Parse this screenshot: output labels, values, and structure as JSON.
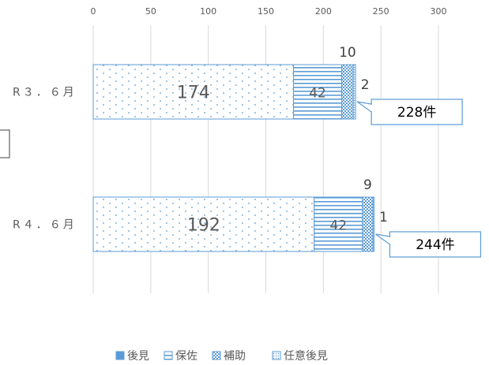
{
  "chart_data": {
    "type": "bar",
    "orientation": "horizontal",
    "stacked": true,
    "categories": [
      "R３．６月",
      "R４．６月"
    ],
    "series": [
      {
        "name": "後見",
        "values": [
          174,
          192
        ],
        "color": "#5b9bd5",
        "pattern": "dots"
      },
      {
        "name": "保佐",
        "values": [
          42,
          42
        ],
        "color": "#5b9bd5",
        "pattern": "horizontal-lines"
      },
      {
        "name": "補助",
        "values": [
          10,
          9
        ],
        "color": "#5b9bd5",
        "pattern": "checker"
      },
      {
        "name": "任意後見",
        "values": [
          2,
          1
        ],
        "color": "#5b9bd5",
        "pattern": "small-dots"
      }
    ],
    "totals": [
      "228件",
      "244件"
    ],
    "xlim": [
      0,
      300
    ],
    "xticks": [
      0,
      50,
      100,
      150,
      200,
      250,
      300
    ],
    "grid": true,
    "legend_position": "bottom"
  }
}
